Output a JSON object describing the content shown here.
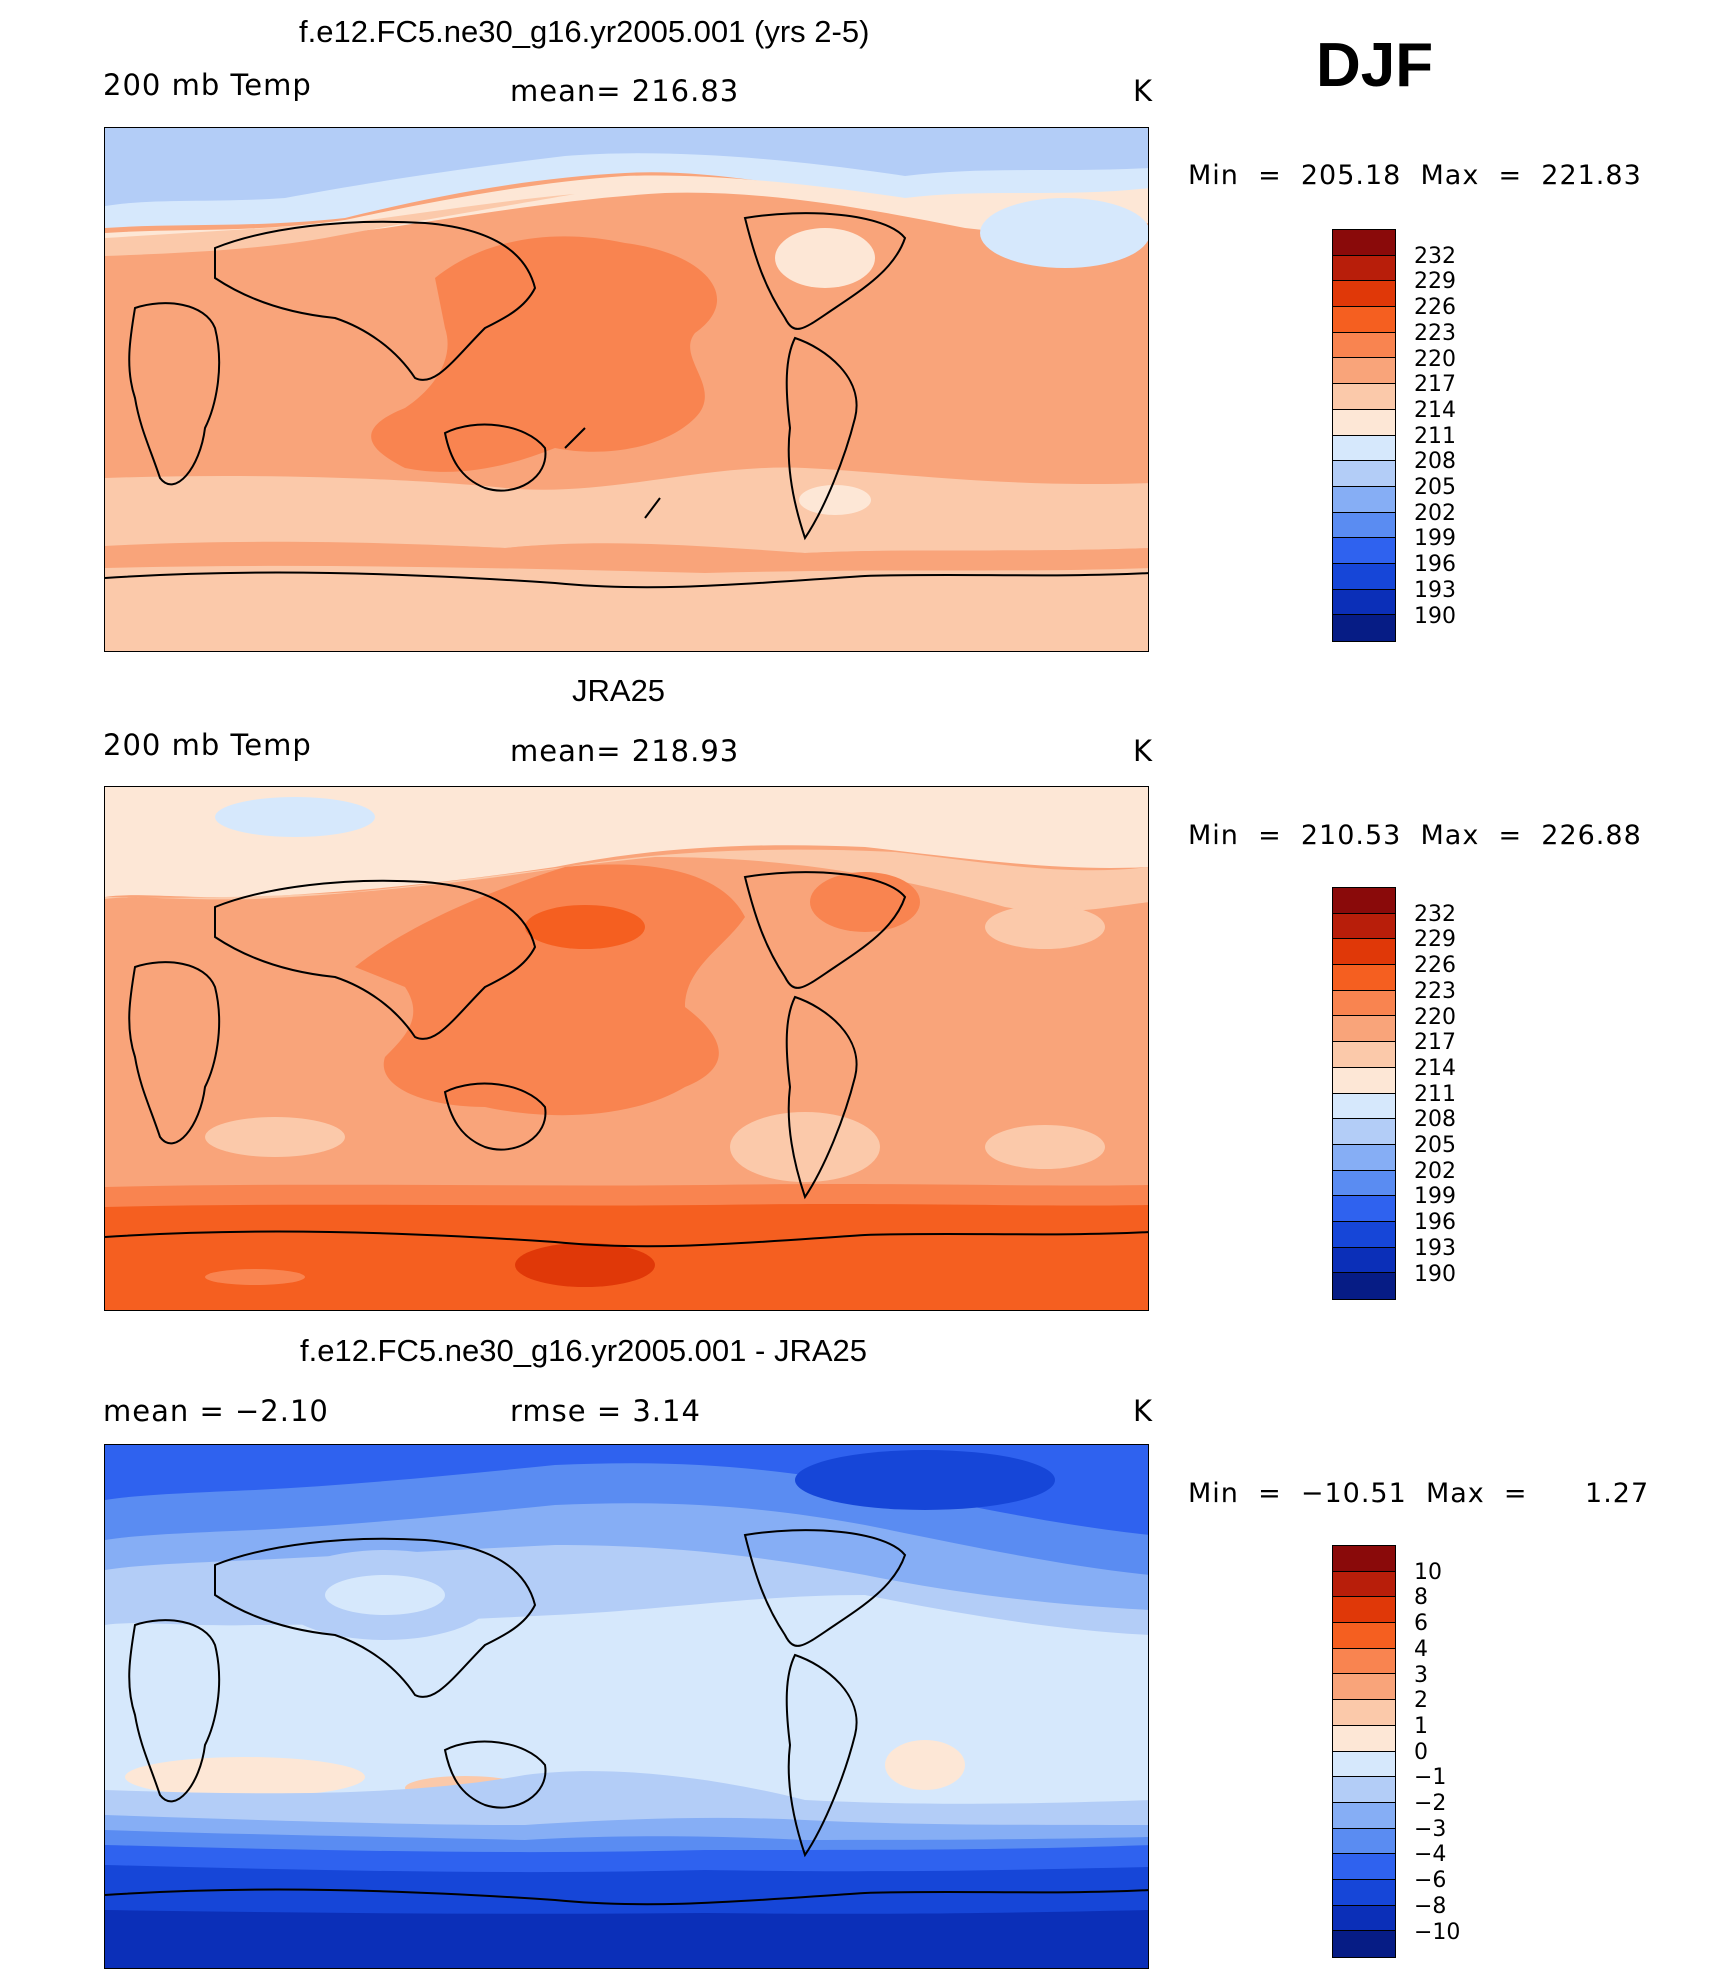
{
  "season": "DJF",
  "panels": [
    {
      "title": "f.e12.FC5.ne30_g16.yr2005.001 (yrs 2-5)",
      "left_label": "200 mb Temp",
      "center_label": "mean=  216.83",
      "units": "K",
      "minmax": "Min  =  205.18  Max  =  221.83"
    },
    {
      "title": "JRA25",
      "left_label": "200 mb Temp",
      "center_label": "mean=  218.93",
      "units": "K",
      "minmax": "Min  =  210.53  Max  =  226.88"
    },
    {
      "title": "f.e12.FC5.ne30_g16.yr2005.001 - JRA25",
      "left_label": "mean  =    −2.10",
      "center_label": "rmse  =     3.14",
      "units": "K",
      "minmax": "Min  =  −10.51  Max  =      1.27"
    }
  ],
  "colorbars": {
    "absolute": {
      "labels": [
        "232",
        "229",
        "226",
        "223",
        "220",
        "217",
        "214",
        "211",
        "208",
        "205",
        "202",
        "199",
        "196",
        "193",
        "190"
      ],
      "colors": [
        "#8a0a0a",
        "#b81e0a",
        "#e03808",
        "#f55f20",
        "#f98450",
        "#f9a47a",
        "#fbc9aa",
        "#fde7d6",
        "#d6e8fc",
        "#b3cdf7",
        "#86aef5",
        "#5a8cf2",
        "#2f62ef",
        "#1646d8",
        "#0b2fb8",
        "#061c85"
      ]
    },
    "difference": {
      "labels": [
        "10",
        "8",
        "6",
        "4",
        "3",
        "2",
        "1",
        "0",
        "−1",
        "−2",
        "−3",
        "−4",
        "−6",
        "−8",
        "−10"
      ],
      "colors": [
        "#8a0a0a",
        "#b81e0a",
        "#e03808",
        "#f55f20",
        "#f98450",
        "#f9a47a",
        "#fbc9aa",
        "#fde7d6",
        "#d6e8fc",
        "#b3cdf7",
        "#86aef5",
        "#5a8cf2",
        "#2f62ef",
        "#1646d8",
        "#0b2fb8",
        "#061c85"
      ]
    }
  }
}
